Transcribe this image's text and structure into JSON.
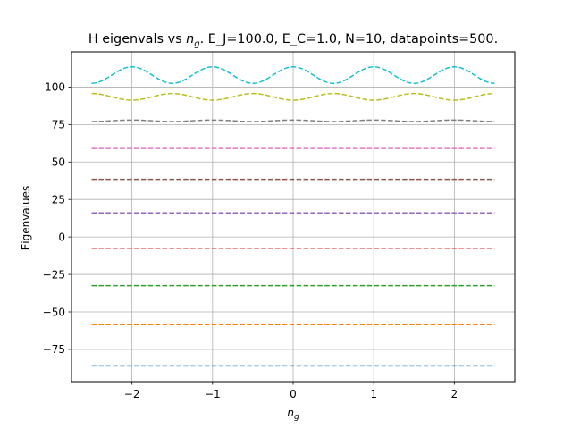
{
  "chart_data": {
    "type": "line",
    "title_prefix": "H eigenvals vs ",
    "title_var": "n",
    "title_var_sub": "g",
    "title_suffix": ". E_J=100.0, E_C=1.0, N=10, datapoints=500.",
    "xlabel_var": "n",
    "xlabel_sub": "g",
    "ylabel": "Eigenvalues",
    "xlim": [
      -2.75,
      2.75
    ],
    "ylim": [
      -96.5,
      123.5
    ],
    "xticks": [
      -2,
      -1,
      0,
      1,
      2
    ],
    "xtick_labels": [
      "−2",
      "−1",
      "0",
      "1",
      "2"
    ],
    "yticks": [
      -75,
      -50,
      -25,
      0,
      25,
      50,
      75,
      100
    ],
    "ytick_labels": [
      "−75",
      "−50",
      "−25",
      "0",
      "25",
      "50",
      "75",
      "100"
    ],
    "grid": true,
    "line_style": "dashed",
    "x_range": [
      -2.5,
      2.5
    ],
    "series": [
      {
        "base": -86.0,
        "amplitude": 0.0,
        "phase": 0,
        "color": "#1f77b4"
      },
      {
        "base": -58.5,
        "amplitude": 0.0,
        "phase": 0,
        "color": "#ff7f0e"
      },
      {
        "base": -32.5,
        "amplitude": 0.0,
        "phase": 0,
        "color": "#2ca02c"
      },
      {
        "base": -7.5,
        "amplitude": 0.0,
        "phase": 0,
        "color": "#d62728"
      },
      {
        "base": 16.0,
        "amplitude": 0.0,
        "phase": 0,
        "color": "#9467bd"
      },
      {
        "base": 38.5,
        "amplitude": 0.0,
        "phase": 0,
        "color": "#8c564b"
      },
      {
        "base": 59.0,
        "amplitude": 0.0,
        "phase": 0,
        "color": "#e377c2"
      },
      {
        "base": 77.5,
        "amplitude": 0.5,
        "phase": 0,
        "color": "#7f7f7f"
      },
      {
        "base": 93.5,
        "amplitude": 2.2,
        "phase": 1,
        "color": "#bcbd22"
      },
      {
        "base": 108.0,
        "amplitude": 5.5,
        "phase": 0,
        "color": "#17becf"
      }
    ]
  }
}
